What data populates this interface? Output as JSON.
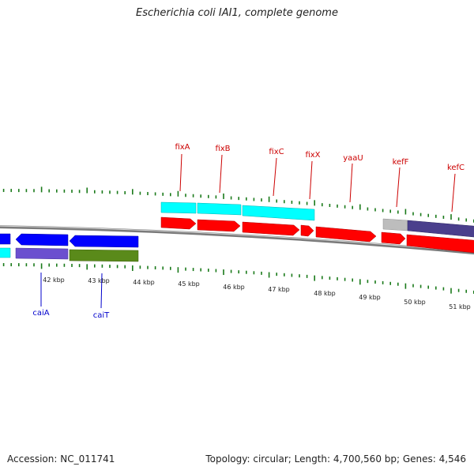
{
  "title": "Escherichia coli IAI1, complete genome",
  "accession": "Accession: NC_011741",
  "summary": "Topology: circular; Length: 4,700,560 bp; Genes: 4,546",
  "colors": {
    "cyan_track": "#00ffff",
    "red_gene": "#ff0000",
    "blue_gene": "#0000ff",
    "purple_gene": "#6b4fcf",
    "olive_gene": "#5a8a1a",
    "gray_gene": "#bdbdbd",
    "dark_purple_gene": "#4a3f8c",
    "backbone": "#7a7a7a",
    "ticks": "#1a7a1a",
    "red_label": "#cc0000",
    "blue_label": "#0000cc"
  },
  "kbp_labels": [
    "42 kbp",
    "43 kbp",
    "44 kbp",
    "45 kbp",
    "46 kbp",
    "47 kbp",
    "48 kbp",
    "49 kbp",
    "50 kbp",
    "51 kbp"
  ],
  "genes_top": [
    "fixA",
    "fixB",
    "fixC",
    "fixX",
    "yaaU",
    "kefF",
    "kefC"
  ],
  "genes_bottom": [
    "caiA",
    "caiT"
  ]
}
